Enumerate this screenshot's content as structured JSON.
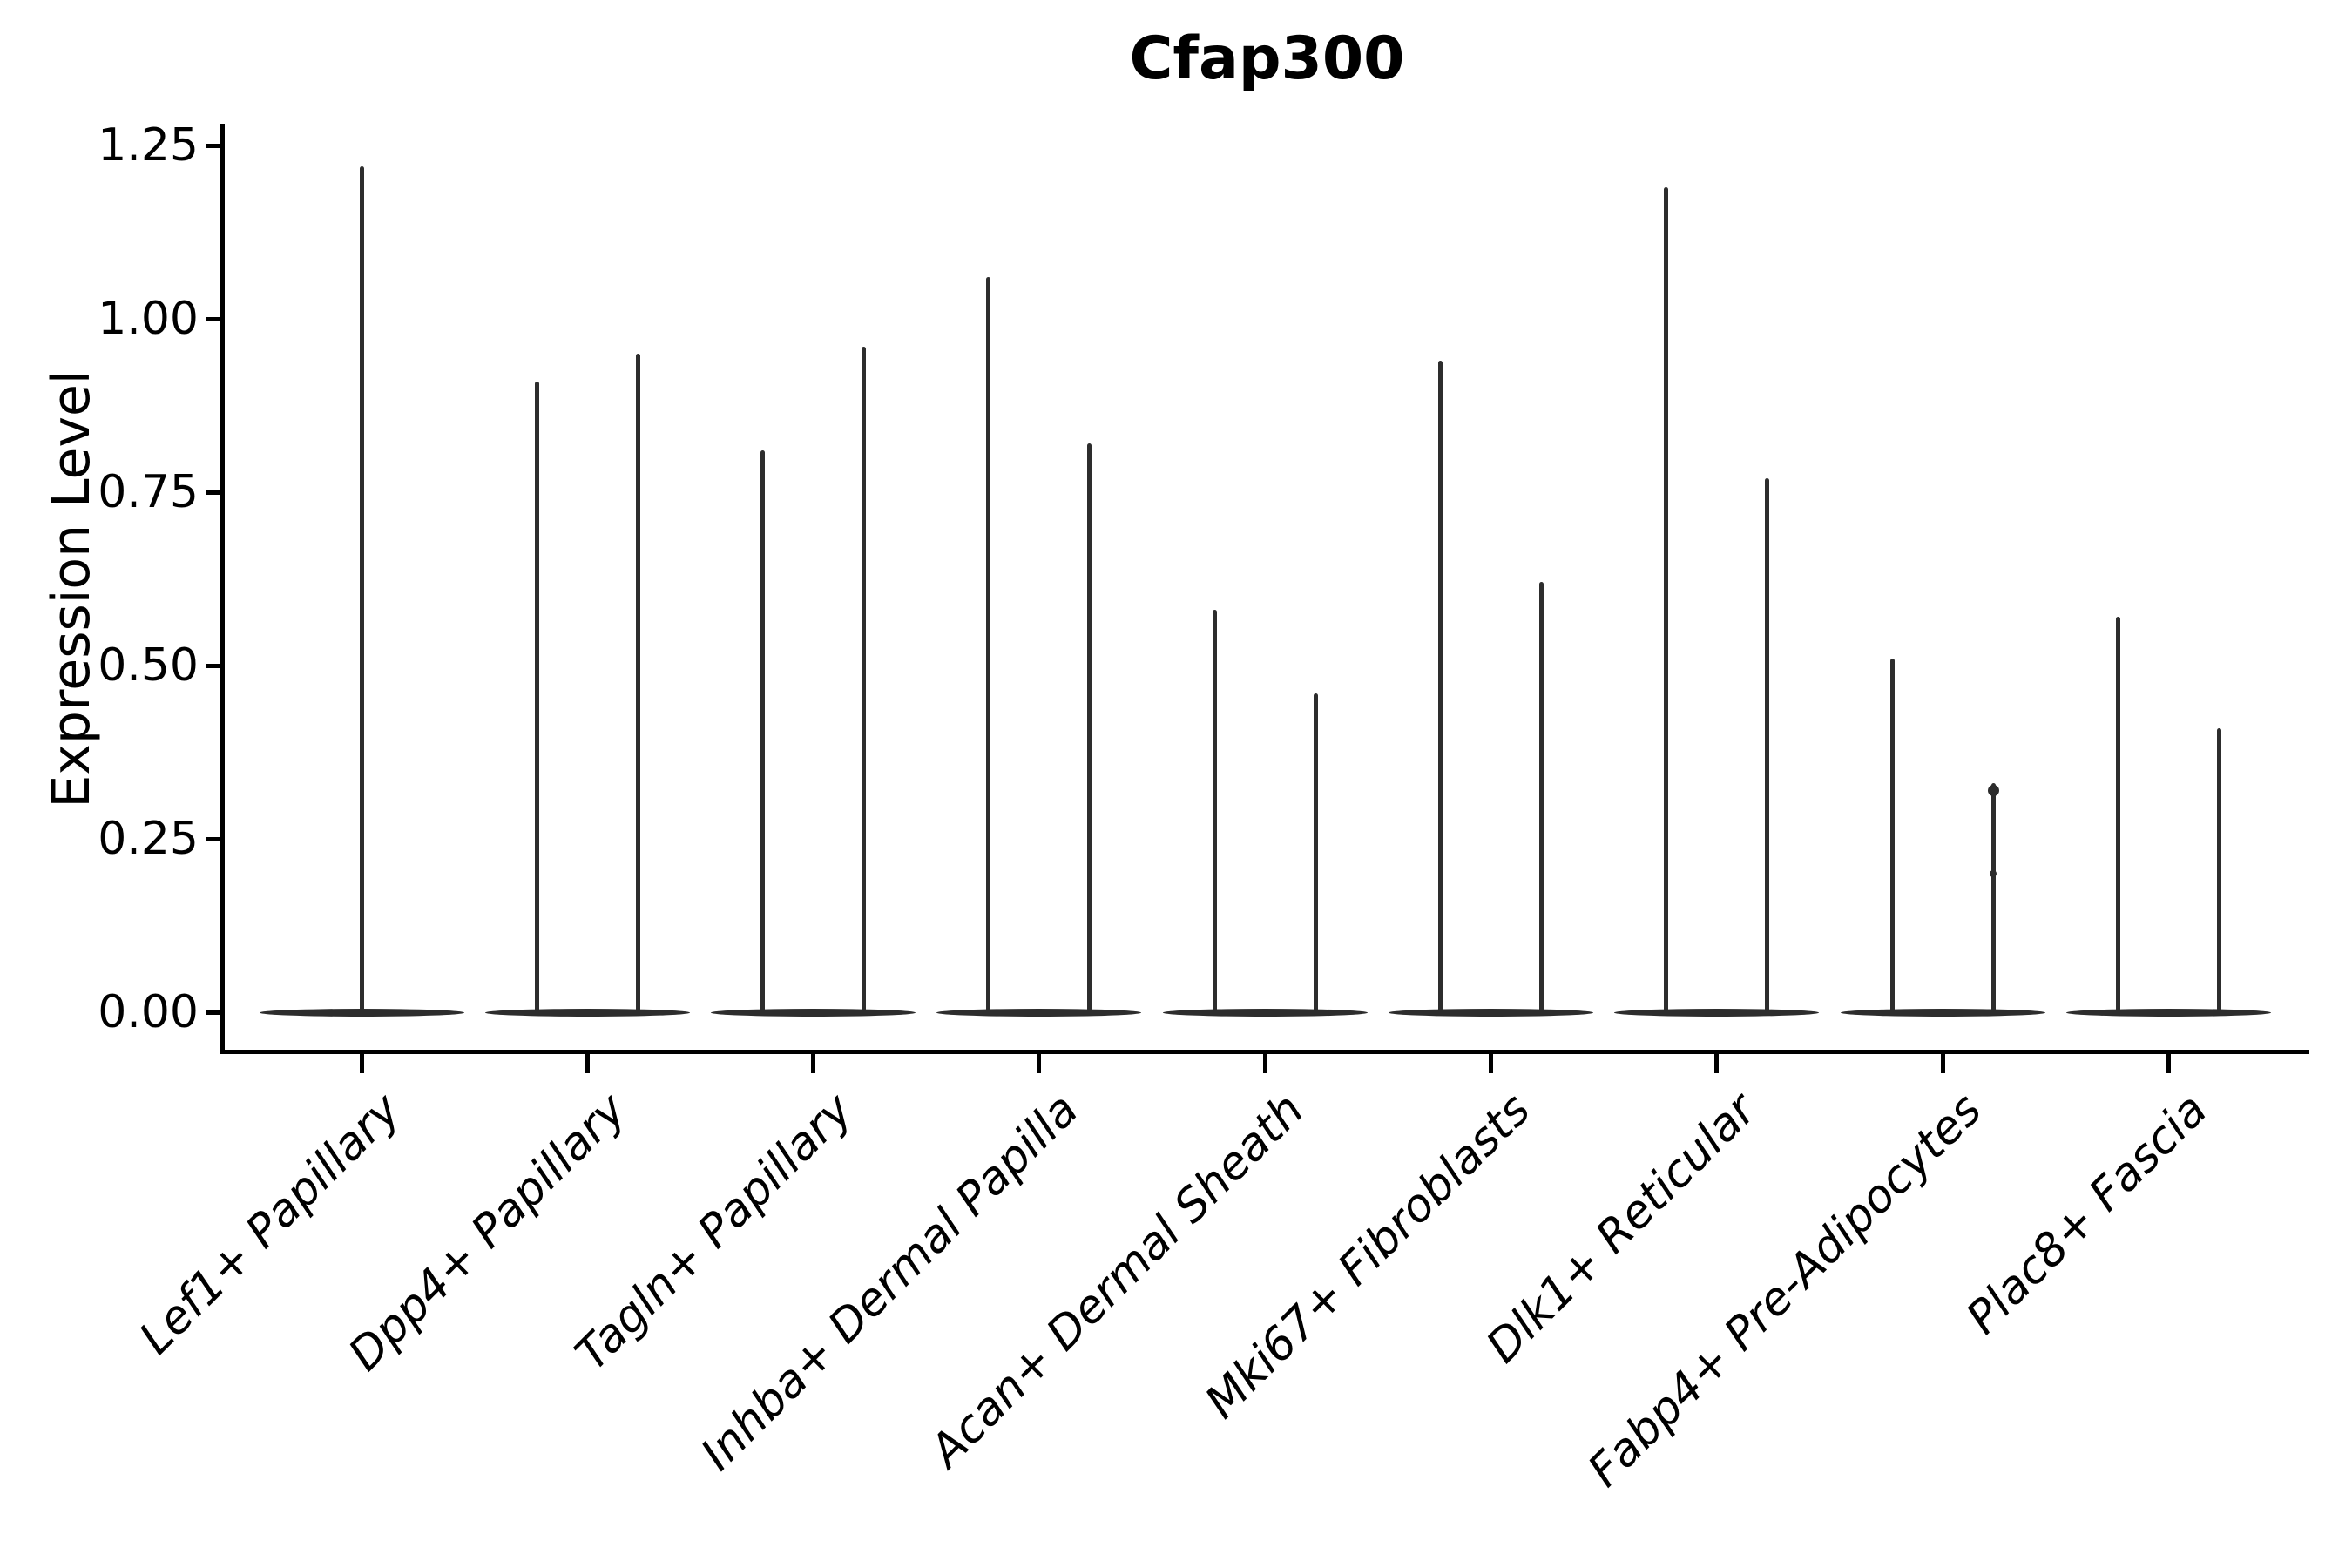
{
  "title": "Cfap300",
  "axes": {
    "ylabel": "Expression Level",
    "ytick_labels": [
      "0.00",
      "0.25",
      "0.50",
      "0.75",
      "1.00",
      "1.25"
    ],
    "xtick_labels": [
      "Lef1+ Papillary",
      "Dpp4+ Papillary",
      "Tagln+ Papillary",
      "Inhba+ Dermal Papilla",
      "Acan+ Dermal Sheath",
      "Mki67+ Fibroblasts",
      "Dlk1+ Reticular",
      "Fabp4+ Pre-Adipocytes",
      "Plac8+ Fascia"
    ]
  },
  "chart_data": {
    "type": "violin",
    "title": "Cfap300",
    "xlabel": "",
    "ylabel": "Expression Level",
    "ylim": [
      -0.06,
      1.28
    ],
    "yticks": [
      0.0,
      0.25,
      0.5,
      0.75,
      1.0,
      1.25
    ],
    "ytick_labels": [
      "0.00",
      "0.25",
      "0.50",
      "0.75",
      "1.00",
      "1.25"
    ],
    "grid": false,
    "legend": "none",
    "violin_color": "#2d2d2d",
    "background_color": "#ffffff",
    "categories": [
      "Lef1+ Papillary",
      "Dpp4+ Papillary",
      "Tagln+ Papillary",
      "Inhba+ Dermal Papilla",
      "Acan+ Dermal Sheath",
      "Mki67+ Fibroblasts",
      "Dlk1+ Reticular",
      "Fabp4+ Pre-Adipocytes",
      "Plac8+ Fascia"
    ],
    "description": "Each category shows very narrow violins: density is concentrated at expression 0 (flat lens-shaped disk spanning the category band) with a thin vertical tail reaching the maximum expression value. The first category has a single centered violin; all others have two side-by-side violins.",
    "groups": [
      {
        "category": "Lef1+ Papillary",
        "violins": [
          {
            "position": "center",
            "max": 1.22
          }
        ]
      },
      {
        "category": "Dpp4+ Papillary",
        "violins": [
          {
            "position": "left",
            "max": 0.91
          },
          {
            "position": "right",
            "max": 0.95
          }
        ]
      },
      {
        "category": "Tagln+ Papillary",
        "violins": [
          {
            "position": "left",
            "max": 0.81
          },
          {
            "position": "right",
            "max": 0.96
          }
        ]
      },
      {
        "category": "Inhba+ Dermal Papilla",
        "violins": [
          {
            "position": "left",
            "max": 1.06
          },
          {
            "position": "right",
            "max": 0.82
          }
        ]
      },
      {
        "category": "Acan+ Dermal Sheath",
        "violins": [
          {
            "position": "left",
            "max": 0.58
          },
          {
            "position": "right",
            "max": 0.46
          }
        ]
      },
      {
        "category": "Mki67+ Fibroblasts",
        "violins": [
          {
            "position": "left",
            "max": 0.94
          },
          {
            "position": "right",
            "max": 0.62
          }
        ]
      },
      {
        "category": "Dlk1+ Reticular",
        "violins": [
          {
            "position": "left",
            "max": 1.19
          },
          {
            "position": "right",
            "max": 0.77
          }
        ]
      },
      {
        "category": "Fabp4+ Pre-Adipocytes",
        "violins": [
          {
            "position": "left",
            "max": 0.51
          },
          {
            "position": "right",
            "max": 0.33,
            "bumps": [
              0.32,
              0.2
            ]
          }
        ]
      },
      {
        "category": "Plac8+ Fascia",
        "violins": [
          {
            "position": "left",
            "max": 0.57
          },
          {
            "position": "right",
            "max": 0.41
          }
        ]
      }
    ]
  }
}
